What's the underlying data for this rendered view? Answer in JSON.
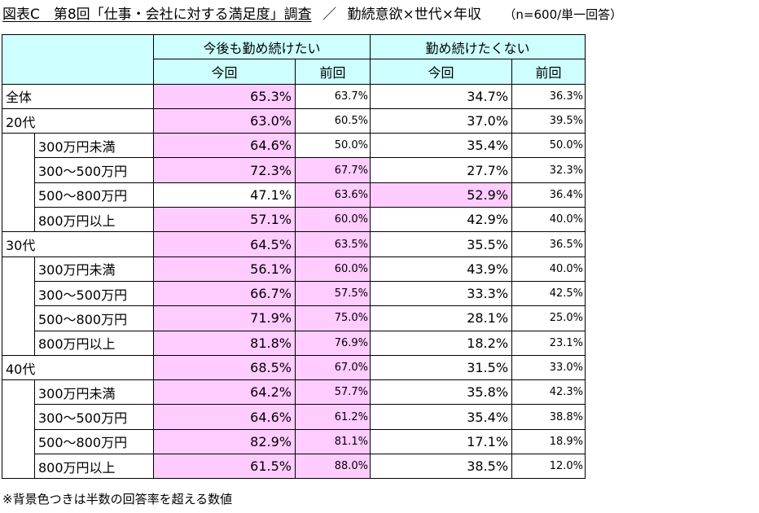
{
  "title": {
    "main": "図表C　第8回「仕事・会社に対する満足度」調査",
    "sep": "／",
    "sub": "勤続意欲×世代×年収",
    "note": "（n=600/単一回答）"
  },
  "header": {
    "group1": "今後も勤め続けたい",
    "group2": "勤め続けたくない",
    "current": "今回",
    "previous": "前回"
  },
  "colors": {
    "header_bg": "#ccfffe",
    "highlight_bg": "#ffccff"
  },
  "chart_data": {
    "type": "table",
    "columns": [
      "今後も勤め続けたい 今回",
      "今後も勤め続けたい 前回",
      "勤め続けたくない 今回",
      "勤め続けたくない 前回"
    ],
    "rows": [
      {
        "label": "全体",
        "level": 0,
        "values": [
          "65.3%",
          "63.7%",
          "34.7%",
          "36.3%"
        ],
        "highlight": [
          true,
          false,
          false,
          false
        ]
      },
      {
        "label": "20代",
        "level": 0,
        "values": [
          "63.0%",
          "60.5%",
          "37.0%",
          "39.5%"
        ],
        "highlight": [
          true,
          false,
          false,
          false
        ]
      },
      {
        "label": "300万円未満",
        "level": 1,
        "values": [
          "64.6%",
          "50.0%",
          "35.4%",
          "50.0%"
        ],
        "highlight": [
          true,
          false,
          false,
          false
        ]
      },
      {
        "label": "300～500万円",
        "level": 1,
        "values": [
          "72.3%",
          "67.7%",
          "27.7%",
          "32.3%"
        ],
        "highlight": [
          true,
          true,
          false,
          false
        ]
      },
      {
        "label": "500～800万円",
        "level": 1,
        "values": [
          "47.1%",
          "63.6%",
          "52.9%",
          "36.4%"
        ],
        "highlight": [
          false,
          true,
          true,
          false
        ]
      },
      {
        "label": "800万円以上",
        "level": 1,
        "values": [
          "57.1%",
          "60.0%",
          "42.9%",
          "40.0%"
        ],
        "highlight": [
          true,
          true,
          false,
          false
        ]
      },
      {
        "label": "30代",
        "level": 0,
        "values": [
          "64.5%",
          "63.5%",
          "35.5%",
          "36.5%"
        ],
        "highlight": [
          true,
          true,
          false,
          false
        ]
      },
      {
        "label": "300万円未満",
        "level": 1,
        "values": [
          "56.1%",
          "60.0%",
          "43.9%",
          "40.0%"
        ],
        "highlight": [
          true,
          true,
          false,
          false
        ]
      },
      {
        "label": "300～500万円",
        "level": 1,
        "values": [
          "66.7%",
          "57.5%",
          "33.3%",
          "42.5%"
        ],
        "highlight": [
          true,
          true,
          false,
          false
        ]
      },
      {
        "label": "500～800万円",
        "level": 1,
        "values": [
          "71.9%",
          "75.0%",
          "28.1%",
          "25.0%"
        ],
        "highlight": [
          true,
          true,
          false,
          false
        ]
      },
      {
        "label": "800万円以上",
        "level": 1,
        "values": [
          "81.8%",
          "76.9%",
          "18.2%",
          "23.1%"
        ],
        "highlight": [
          true,
          true,
          false,
          false
        ]
      },
      {
        "label": "40代",
        "level": 0,
        "values": [
          "68.5%",
          "67.0%",
          "31.5%",
          "33.0%"
        ],
        "highlight": [
          true,
          true,
          false,
          false
        ]
      },
      {
        "label": "300万円未満",
        "level": 1,
        "values": [
          "64.2%",
          "57.7%",
          "35.8%",
          "42.3%"
        ],
        "highlight": [
          true,
          true,
          false,
          false
        ]
      },
      {
        "label": "300～500万円",
        "level": 1,
        "values": [
          "64.6%",
          "61.2%",
          "35.4%",
          "38.8%"
        ],
        "highlight": [
          true,
          true,
          false,
          false
        ]
      },
      {
        "label": "500～800万円",
        "level": 1,
        "values": [
          "82.9%",
          "81.1%",
          "17.1%",
          "18.9%"
        ],
        "highlight": [
          true,
          true,
          false,
          false
        ]
      },
      {
        "label": "800万円以上",
        "level": 1,
        "values": [
          "61.5%",
          "88.0%",
          "38.5%",
          "12.0%"
        ],
        "highlight": [
          true,
          true,
          false,
          false
        ]
      }
    ]
  },
  "footnote": "※背景色つきは半数の回答率を超える数値"
}
